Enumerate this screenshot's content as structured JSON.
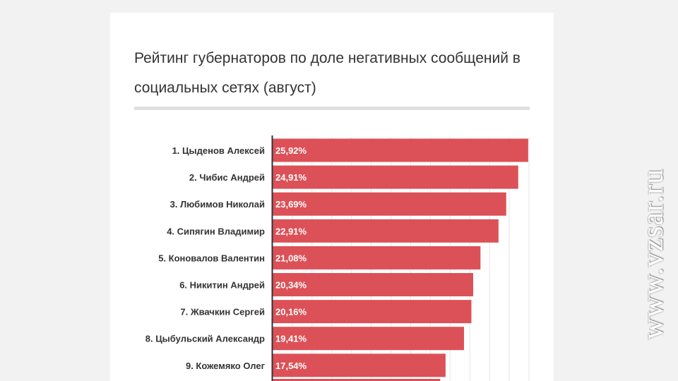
{
  "watermark": "www.vzsar.ru",
  "colors": {
    "bar": "#dc5157",
    "grid": "#e6e6e6",
    "axis": "#333333"
  },
  "chart_data": {
    "type": "bar",
    "orientation": "horizontal",
    "title": "Рейтинг губернаторов по доле негативных сообщений в социальных сетях (август)",
    "categories": [
      "1. Цыденов Алексей",
      "2. Чибис Андрей",
      "3. Любимов Николай",
      "4. Сипягин Владимир",
      "5. Коновалов Валентин",
      "6. Никитин Андрей",
      "7. Жвачкин Сергей",
      "8. Цыбульский Александр",
      "9. Кожемяко Олег"
    ],
    "values": [
      25.92,
      24.91,
      23.69,
      22.91,
      21.08,
      20.34,
      20.16,
      19.41,
      17.54
    ],
    "value_labels": [
      "25,92%",
      "24,91%",
      "23,69%",
      "22,91%",
      "21,08%",
      "20,34%",
      "20,16%",
      "19,41%",
      "17,54%"
    ],
    "xlim": [
      0,
      26
    ],
    "grid": true
  }
}
